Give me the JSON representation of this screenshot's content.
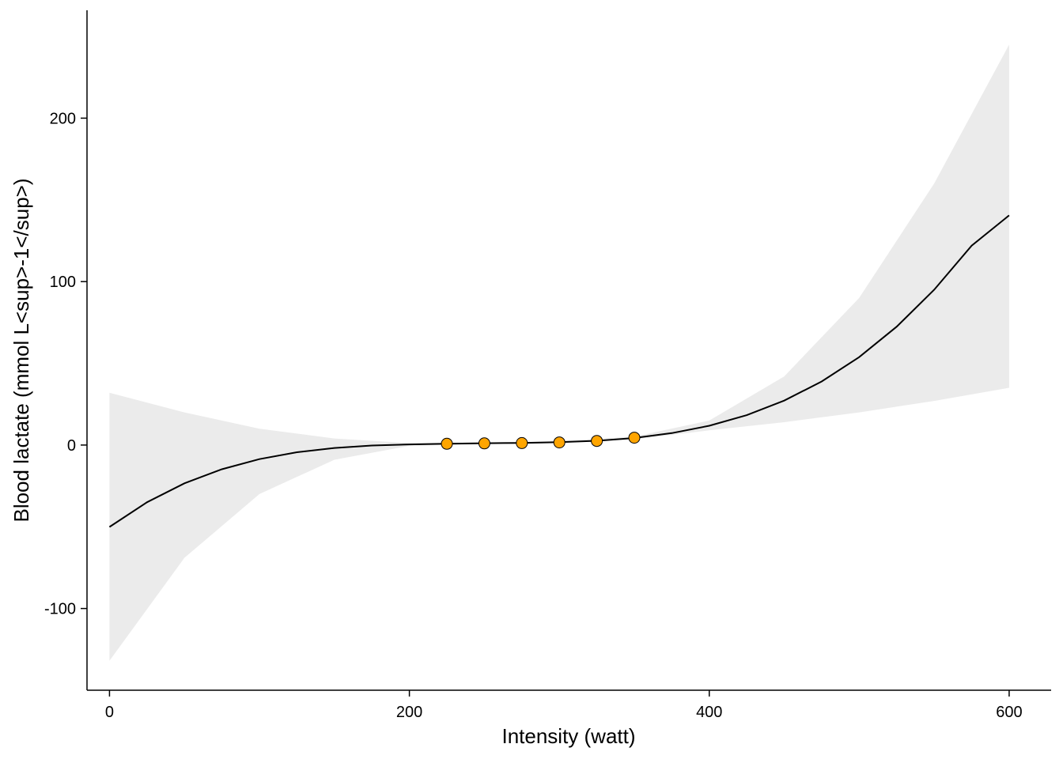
{
  "chart_data": {
    "type": "line",
    "xlabel": "Intensity (watt)",
    "ylabel": "Blood lactate (mmol L<sup>-1</sup>)",
    "xlim": [
      -15,
      628
    ],
    "ylim": [
      -150,
      266
    ],
    "x_ticks": [
      0,
      200,
      400,
      600
    ],
    "y_ticks": [
      -100,
      0,
      100,
      200
    ],
    "grid": false,
    "legend": "none",
    "fit_curve": {
      "x": [
        0,
        25,
        50,
        75,
        100,
        125,
        150,
        175,
        200,
        225,
        250,
        275,
        300,
        325,
        350,
        375,
        400,
        425,
        450,
        475,
        500,
        525,
        550,
        575,
        600
      ],
      "y": [
        -50.1,
        -35.0,
        -23.4,
        -14.8,
        -8.6,
        -4.4,
        -1.8,
        -0.3,
        0.4,
        0.8,
        1.1,
        1.3,
        1.8,
        2.6,
        4.3,
        7.3,
        11.8,
        18.3,
        27.2,
        38.9,
        53.8,
        72.4,
        95.0,
        122.0,
        140.5
      ]
    },
    "confidence_band": {
      "x": [
        0,
        50,
        100,
        150,
        200,
        250,
        300,
        350,
        400,
        450,
        500,
        550,
        600
      ],
      "lower": [
        -132,
        -69,
        -30,
        -9,
        -0.5,
        0.5,
        1.2,
        3.5,
        9,
        14,
        20,
        27,
        35
      ],
      "upper": [
        32,
        20,
        10,
        4,
        1.2,
        1.5,
        2.4,
        5.2,
        15,
        42,
        90,
        160,
        245
      ]
    },
    "points": {
      "x": [
        225,
        250,
        275,
        300,
        325,
        350
      ],
      "y": [
        0.8,
        1.0,
        1.2,
        1.6,
        2.5,
        4.5
      ]
    },
    "colors": {
      "band": "#ebebeb",
      "line": "#000000",
      "point_fill": "#ffa500",
      "point_stroke": "#000000"
    }
  }
}
